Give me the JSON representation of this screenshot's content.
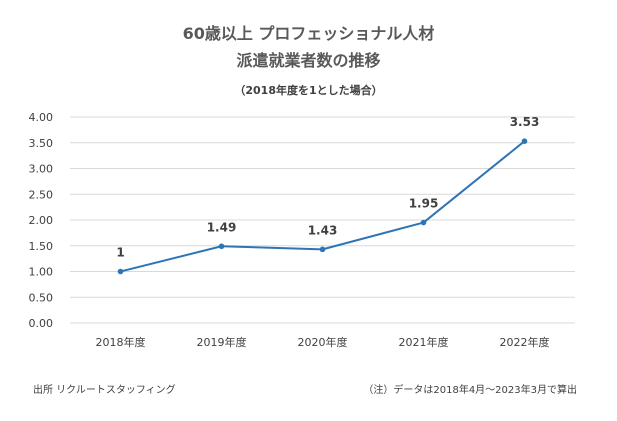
{
  "chart_data": {
    "type": "line",
    "title_line1": "60歳以上 プロフェッショナル人材",
    "title_line2": "派遣就業者数の推移",
    "subtitle": "（2018年度を1とした場合）",
    "categories": [
      "2018年度",
      "2019年度",
      "2020年度",
      "2021年度",
      "2022年度"
    ],
    "values": [
      1,
      1.49,
      1.43,
      1.95,
      3.53
    ],
    "value_labels": [
      "1",
      "1.49",
      "1.43",
      "1.95",
      "3.53"
    ],
    "yticks": [
      "0.00",
      "0.50",
      "1.00",
      "1.50",
      "2.00",
      "2.50",
      "3.00",
      "3.50",
      "4.00"
    ],
    "ylim": [
      0,
      4
    ],
    "grid": true,
    "legend": "none",
    "line_color": "#2E75B6",
    "grid_color": "#D9D9D9"
  },
  "footer": {
    "source": "出所 リクルートスタッフィング",
    "note": "（注）データは2018年4月～2023年3月で算出"
  }
}
